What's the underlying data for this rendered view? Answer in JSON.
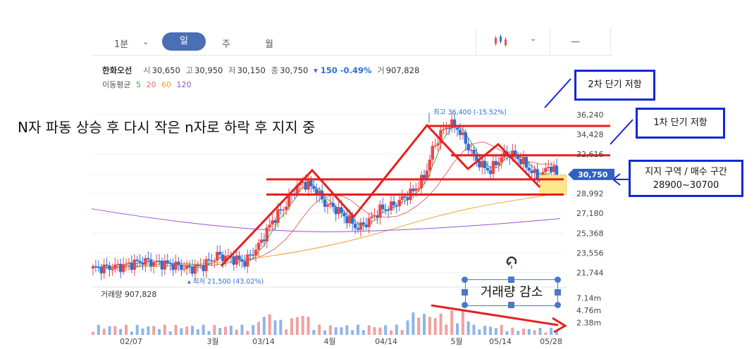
{
  "toolbar": {
    "minute_label": "1분",
    "day_label": "일",
    "week_label": "주",
    "month_label": "월",
    "dash_label": "—"
  },
  "stock": {
    "name": "한화오선",
    "open_label": "시",
    "open": "30,650",
    "high_label": "고",
    "high": "30,950",
    "low_label": "저",
    "low": "30,150",
    "close_label": "종",
    "close": "30,750",
    "change": "▾ 150 -0.49%",
    "volume_label": "거",
    "volume": "907,828"
  },
  "ma": {
    "label": "이동평균",
    "periods": [
      "5",
      "20",
      "60",
      "120"
    ],
    "colors": [
      "#3cae3c",
      "#e86a6a",
      "#f0a030",
      "#9a50d0"
    ]
  },
  "annotations": {
    "headline": "N자 파동 상승 후 다시 작은 n자로 하락 후 지지 중",
    "resistance2": "2차 단기 저항",
    "resistance1": "1차 단기 저항",
    "support_line1": "지지 구역 / 매수 구간",
    "support_line2": "28900~30700",
    "volume_note": "거래량 감소"
  },
  "chart_data": {
    "type": "candlestick",
    "scale_label": "Linear",
    "price_ticks": [
      36240,
      34428,
      32616,
      30750,
      28992,
      27180,
      25368,
      23556,
      21744
    ],
    "price_tick_labels": [
      "36,240",
      "34,428",
      "32,616",
      "30,750",
      "28,992",
      "27,180",
      "25,368",
      "23,556",
      "21,744"
    ],
    "current_price_label": "30,750",
    "ylim": [
      20800,
      37200
    ],
    "high_marker": "최고 36,400 (-15.52%)",
    "high_value": 36400,
    "low_marker": "최저 21,500 (43.02%)",
    "low_value": 21500,
    "x_labels": [
      "02/07",
      "3월",
      "03/14",
      "4월",
      "04/14",
      "5월",
      "05/14",
      "05/28"
    ],
    "volume_title": "거래량",
    "volume_value": "907,828",
    "volume_ticks": [
      "7.14m",
      "4.76m",
      "2.38m"
    ],
    "volume_tick_values": [
      7.14,
      4.76,
      2.38
    ],
    "volume_max": 9.0,
    "support_zone": [
      28900,
      30700
    ],
    "resistance_levels": [
      35200,
      32500
    ],
    "support_levels": [
      30300,
      28900
    ]
  }
}
